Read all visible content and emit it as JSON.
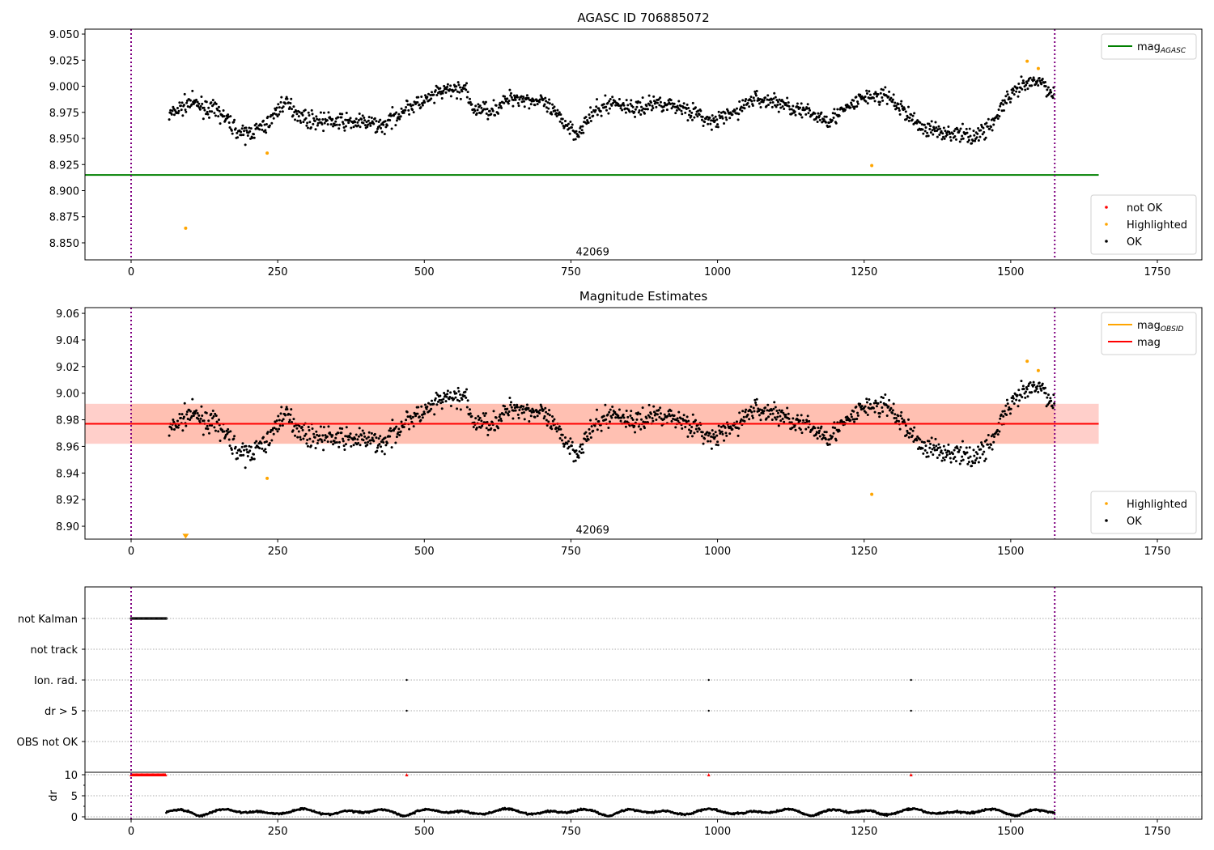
{
  "chart_data": [
    {
      "type": "scatter",
      "title": "AGASC ID 706885072",
      "xlim": [
        -80,
        1820
      ],
      "ylim": [
        8.8337,
        9.0547
      ],
      "xticks": [
        0,
        250,
        500,
        750,
        1000,
        1250,
        1500,
        1750
      ],
      "yticks": [
        8.85,
        8.875,
        8.9,
        8.925,
        8.95,
        8.975,
        9.0,
        9.025,
        9.05
      ],
      "ytick_decimals": 3,
      "obsid_label": "42069",
      "obsid_label_pos": [
        787,
        8.838
      ],
      "vlines": [
        0,
        1575
      ],
      "hline": {
        "name": "mag",
        "sub": "AGASC",
        "value": 8.915,
        "x_range": [
          -80,
          1650
        ],
        "color": "#008000"
      },
      "legend_top": [
        {
          "label": "mag",
          "sub": "AGASC",
          "color": "#008000",
          "kind": "line"
        }
      ],
      "legend_bottom": [
        {
          "label": "not OK",
          "color": "#ff0000",
          "kind": "dot"
        },
        {
          "label": "Highlighted",
          "color": "#ffa500",
          "kind": "dot"
        },
        {
          "label": "OK",
          "color": "#000000",
          "kind": "dot"
        }
      ],
      "highlighted": [
        [
          93,
          8.864
        ],
        [
          232,
          8.936
        ],
        [
          1263,
          8.924
        ],
        [
          1528,
          9.024
        ],
        [
          1547,
          9.017
        ]
      ]
    },
    {
      "type": "scatter",
      "title": "Magnitude Estimates",
      "xlim": [
        -80,
        1820
      ],
      "ylim": [
        8.8903,
        9.0643
      ],
      "xticks": [
        0,
        250,
        500,
        750,
        1000,
        1250,
        1500,
        1750
      ],
      "yticks": [
        8.9,
        8.92,
        8.94,
        8.96,
        8.98,
        9.0,
        9.02,
        9.04,
        9.06
      ],
      "ytick_decimals": 2,
      "obsid_label": "42069",
      "obsid_label_pos": [
        787,
        8.8945
      ],
      "vlines": [
        0,
        1575
      ],
      "mag_obsid": 8.977,
      "mag": 8.977,
      "band": [
        8.962,
        8.992
      ],
      "legend_top": [
        {
          "label": "mag",
          "sub": "OBSID",
          "color": "#ffa500",
          "kind": "line"
        },
        {
          "label": "mag",
          "sub": "",
          "color": "#ff0000",
          "kind": "line"
        }
      ],
      "legend_bottom": [
        {
          "label": "Highlighted",
          "color": "#ffa500",
          "kind": "dot"
        },
        {
          "label": "OK",
          "color": "#000000",
          "kind": "dot"
        }
      ],
      "highlighted": [
        [
          232,
          8.936
        ],
        [
          1263,
          8.924
        ],
        [
          1528,
          9.024
        ],
        [
          1547,
          9.017
        ]
      ],
      "clipped_low": [
        [
          93,
          8.8925
        ]
      ]
    },
    {
      "type": "scatter",
      "flags": [
        "not Kalman",
        "not track",
        "Ion. rad.",
        "dr > 5",
        "OBS not OK"
      ],
      "flag_points": {
        "not Kalman": {
          "range": [
            0,
            60
          ]
        },
        "Ion. rad.": {
          "times": [
            470,
            985,
            1330
          ]
        },
        "dr > 5": {
          "times": [
            470,
            985,
            1330
          ]
        }
      },
      "dr_ylabel": "dr",
      "dr_yticks": [
        0,
        5,
        10
      ],
      "dr_ylim": [
        -0.58,
        10.58
      ],
      "dr_clipped": {
        "range": [
          0,
          60
        ],
        "times": [
          470,
          985,
          1330
        ],
        "value": 10
      },
      "xticks": [
        0,
        250,
        500,
        750,
        1000,
        1250,
        1500,
        1750
      ]
    }
  ],
  "trend": [
    [
      65,
      8.972
    ],
    [
      100,
      8.985
    ],
    [
      150,
      8.975
    ],
    [
      190,
      8.953
    ],
    [
      230,
      8.962
    ],
    [
      260,
      8.985
    ],
    [
      300,
      8.968
    ],
    [
      350,
      8.966
    ],
    [
      400,
      8.965
    ],
    [
      430,
      8.962
    ],
    [
      470,
      8.98
    ],
    [
      500,
      8.985
    ],
    [
      530,
      8.995
    ],
    [
      570,
      8.998
    ],
    [
      580,
      8.978
    ],
    [
      620,
      8.978
    ],
    [
      650,
      8.99
    ],
    [
      700,
      8.985
    ],
    [
      730,
      8.97
    ],
    [
      760,
      8.955
    ],
    [
      790,
      8.975
    ],
    [
      820,
      8.985
    ],
    [
      860,
      8.978
    ],
    [
      900,
      8.985
    ],
    [
      950,
      8.978
    ],
    [
      990,
      8.965
    ],
    [
      1030,
      8.975
    ],
    [
      1060,
      8.988
    ],
    [
      1100,
      8.985
    ],
    [
      1150,
      8.975
    ],
    [
      1190,
      8.968
    ],
    [
      1220,
      8.978
    ],
    [
      1250,
      8.99
    ],
    [
      1290,
      8.99
    ],
    [
      1320,
      8.975
    ],
    [
      1350,
      8.96
    ],
    [
      1400,
      8.955
    ],
    [
      1440,
      8.952
    ],
    [
      1470,
      8.965
    ],
    [
      1490,
      8.985
    ],
    [
      1520,
      9.0
    ],
    [
      1550,
      9.005
    ],
    [
      1575,
      8.99
    ]
  ],
  "noise_sigma": 0.008,
  "colors": {
    "ok": "#000000",
    "highlighted": "#ffa500",
    "not_ok": "#ff0000",
    "vline": "#800080",
    "band_pink": "#ffc0cb",
    "band_orange": "#ffa07a"
  }
}
